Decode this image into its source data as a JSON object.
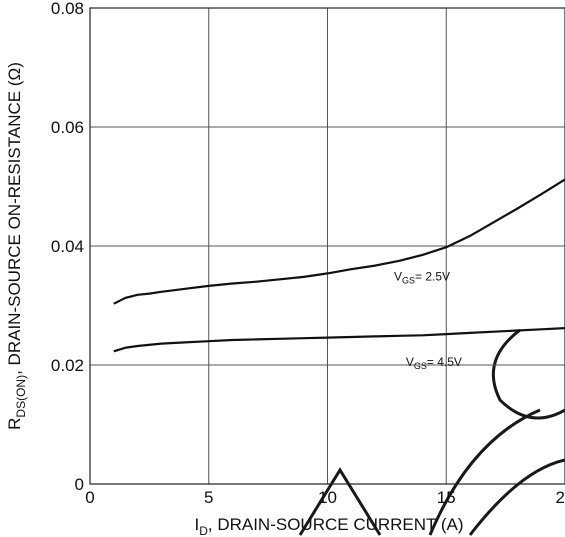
{
  "chart_data": {
    "type": "line",
    "title": "",
    "xlabel": {
      "pre": "I",
      "sub": "D",
      "post": ", DRAIN-SOURCE CURRENT (A)"
    },
    "ylabel": {
      "pre": "R",
      "sub": "DS(ON)",
      "post": ", DRAIN-SOURCE ON-RESISTANCE (Ω)"
    },
    "xlim": [
      0,
      20
    ],
    "ylim": [
      0,
      0.08
    ],
    "xticks": [
      0,
      5,
      10,
      15,
      20
    ],
    "xtick_labels": [
      "0",
      "5",
      "10",
      "15",
      "20"
    ],
    "yticks": [
      0,
      0.02,
      0.04,
      0.06,
      0.08
    ],
    "ytick_labels": [
      "0",
      "0.02",
      "0.04",
      "0.06",
      "0.08"
    ],
    "grid": true,
    "series": [
      {
        "name": "VGS = 2.5V",
        "label": {
          "pre": "V",
          "sub": "GS",
          "post": "= 2.5V"
        },
        "label_at": [
          12.8,
          0.0342
        ],
        "x": [
          1,
          1.5,
          2,
          2.5,
          3,
          4,
          5,
          6,
          7,
          8,
          9,
          10,
          11,
          12,
          13,
          14,
          15,
          16,
          17,
          18,
          19,
          20
        ],
        "values": [
          0.0303,
          0.0313,
          0.0318,
          0.032,
          0.0323,
          0.0328,
          0.0333,
          0.0337,
          0.034,
          0.0344,
          0.0348,
          0.0354,
          0.0361,
          0.0367,
          0.0375,
          0.0385,
          0.0398,
          0.0417,
          0.044,
          0.0463,
          0.0487,
          0.0512
        ]
      },
      {
        "name": "VGS = 4.5V",
        "label": {
          "pre": "V",
          "sub": "GS",
          "post": "= 4.5V"
        },
        "label_at": [
          13.3,
          0.0198
        ],
        "x": [
          1,
          1.5,
          2,
          3,
          4,
          5,
          6,
          7,
          8,
          9,
          10,
          11,
          12,
          13,
          14,
          15,
          16,
          17,
          18,
          19,
          20
        ],
        "values": [
          0.0223,
          0.0229,
          0.0232,
          0.0236,
          0.0238,
          0.024,
          0.0242,
          0.0243,
          0.0244,
          0.0245,
          0.0246,
          0.0247,
          0.0248,
          0.0249,
          0.025,
          0.0252,
          0.0254,
          0.0256,
          0.0258,
          0.026,
          0.0262
        ]
      }
    ]
  }
}
